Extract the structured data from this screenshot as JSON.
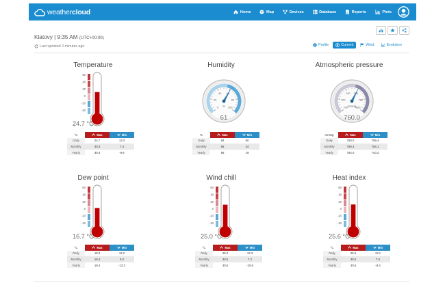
{
  "app": {
    "logo_light": "weather",
    "logo_bold": "cloud"
  },
  "nav": [
    {
      "label": "Home",
      "icon": "home-icon"
    },
    {
      "label": "Map",
      "icon": "globe-icon"
    },
    {
      "label": "Devices",
      "icon": "devices-icon"
    },
    {
      "label": "Database",
      "icon": "database-icon"
    },
    {
      "label": "Reports",
      "icon": "reports-icon"
    },
    {
      "label": "Plots",
      "icon": "plots-icon"
    }
  ],
  "station": {
    "name_time": "Klatovy | 9:35 AM",
    "timezone": "(UTC+00:00)",
    "updated": "Last updated 2 minutes ago"
  },
  "tabs": [
    {
      "label": "Profile",
      "icon": "info-icon"
    },
    {
      "label": "Current",
      "icon": "current-icon"
    },
    {
      "label": "Wind",
      "icon": "flag-icon"
    },
    {
      "label": "Evolution",
      "icon": "evolution-icon"
    }
  ],
  "table_headers": {
    "max": "Max",
    "min": "Min"
  },
  "row_labels": [
    "Daily",
    "Monthly",
    "Yearly"
  ],
  "colors": {
    "brand": "#1a8ccf",
    "max": "#b71c1c",
    "min": "#2d8fc7"
  },
  "panels": [
    {
      "id": "temperature",
      "title": "Temperature",
      "type": "thermometer",
      "value": "24.7 °C",
      "reading": 24.7,
      "unit": "°C",
      "scale": [
        "60",
        "40",
        "20",
        "0",
        "-20",
        "-40"
      ],
      "stats": [
        [
          "24.7",
          "13.3"
        ],
        [
          "30.3",
          "7.4"
        ],
        [
          "30.3",
          "-9.6"
        ]
      ]
    },
    {
      "id": "humidity",
      "title": "Humidity",
      "type": "gauge",
      "value": "61",
      "reading": 61,
      "unit": "%",
      "gauge_unit": "%",
      "scale": [
        "0",
        "20",
        "40",
        "60",
        "80",
        "100"
      ],
      "min": 0,
      "max": 100,
      "stats": [
        [
          "94",
          "60"
        ],
        [
          "95",
          "34"
        ],
        [
          "95",
          "19"
        ]
      ]
    },
    {
      "id": "pressure",
      "title": "Atmospheric pressure",
      "type": "gauge",
      "value": "760.0",
      "reading": 760,
      "unit": "mmHg",
      "gauge_unit": "mmHg",
      "scale": [
        "700",
        "720",
        "740",
        "760",
        "780",
        "800"
      ],
      "min": 700,
      "max": 800,
      "stats": [
        [
          "760.0",
          "759.4"
        ],
        [
          "768.3",
          "754.1"
        ],
        [
          "784.0",
          "740.2"
        ]
      ]
    },
    {
      "id": "dewpoint",
      "title": "Dew point",
      "type": "thermometer",
      "value": "16.7 °C",
      "reading": 16.7,
      "unit": "°C",
      "scale": [
        "60",
        "40",
        "20",
        "0",
        "-20",
        "-40"
      ],
      "stats": [
        [
          "18.3",
          "12.2"
        ],
        [
          "19.4",
          "5.0"
        ],
        [
          "19.4",
          "-13.3"
        ]
      ]
    },
    {
      "id": "windchill",
      "title": "Wind chill",
      "type": "thermometer",
      "value": "25.0 °C",
      "reading": 25.0,
      "unit": "°C",
      "scale": [
        "60",
        "40",
        "20",
        "0",
        "-20",
        "-40"
      ],
      "stats": [
        [
          "25.0",
          "13.3"
        ],
        [
          "30.6",
          "7.2"
        ],
        [
          "30.6",
          "-10.6"
        ]
      ]
    },
    {
      "id": "heatindex",
      "title": "Heat index",
      "type": "thermometer",
      "value": "25.6 °C",
      "reading": 25.6,
      "unit": "°C",
      "scale": [
        "60",
        "40",
        "20",
        "0",
        "-20",
        "-40"
      ],
      "stats": [
        [
          "25.6",
          "13.1"
        ],
        [
          "30.6",
          "7.5"
        ],
        [
          "30.6",
          "-9.3"
        ]
      ]
    }
  ]
}
